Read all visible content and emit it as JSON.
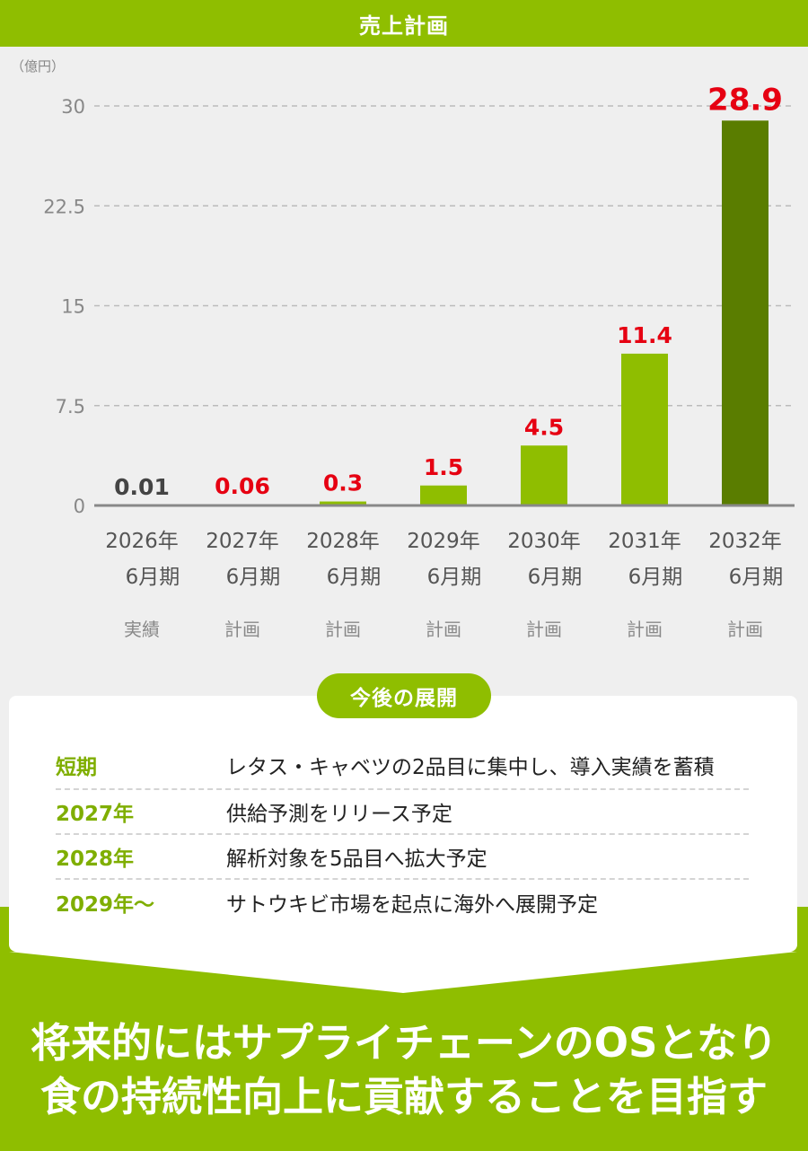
{
  "header": {
    "title": "売上計画"
  },
  "chart_data": {
    "type": "bar",
    "unit": "（億円）",
    "ylim": [
      0,
      30
    ],
    "yticks": [
      "0",
      "7.5",
      "15",
      "22.5",
      "30"
    ],
    "ytick_values": [
      0,
      7.5,
      15,
      22.5,
      30
    ],
    "grid": true,
    "categories": [
      {
        "year": "2026年",
        "period": "6月期",
        "status": "実績",
        "value": 0.01,
        "label": "0.01"
      },
      {
        "year": "2027年",
        "period": "6月期",
        "status": "計画",
        "value": 0.06,
        "label": "0.06"
      },
      {
        "year": "2028年",
        "period": "6月期",
        "status": "計画",
        "value": 0.3,
        "label": "0.3"
      },
      {
        "year": "2029年",
        "period": "6月期",
        "status": "計画",
        "value": 1.5,
        "label": "1.5"
      },
      {
        "year": "2030年",
        "period": "6月期",
        "status": "計画",
        "value": 4.5,
        "label": "4.5"
      },
      {
        "year": "2031年",
        "period": "6月期",
        "status": "計画",
        "value": 11.4,
        "label": "11.4"
      },
      {
        "year": "2032年",
        "period": "6月期",
        "status": "計画",
        "value": 28.9,
        "label": "28.9"
      }
    ],
    "colors": {
      "bar": "#8fbe00",
      "bar_highlight": "#5a7d00",
      "label_actual": "#444444",
      "label_plan": "#e60012",
      "grid": "#bbbbbb",
      "axis": "#888888",
      "tick": "#888888"
    }
  },
  "plans": {
    "title": "今後の展開",
    "rows": [
      {
        "term": "短期",
        "desc": "レタス・キャベツの2品目に集中し、導入実績を蓄積"
      },
      {
        "term": "2027年",
        "desc": "供給予測をリリース予定"
      },
      {
        "term": "2028年",
        "desc": "解析対象を5品目へ拡大予定"
      },
      {
        "term": "2029年～",
        "desc": "サトウキビ市場を起点に海外へ展開予定"
      }
    ]
  },
  "conclusion": {
    "line1": "将来的にはサプライチェーンのOSとなり",
    "line2": "食の持続性向上に貢献することを目指す"
  }
}
